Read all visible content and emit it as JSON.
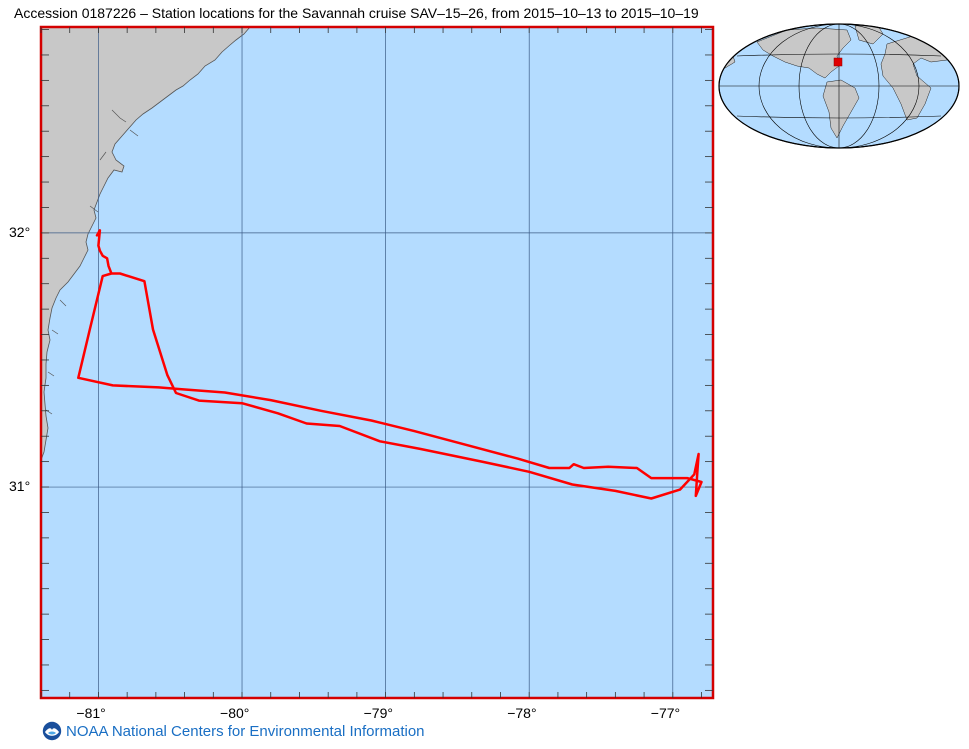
{
  "title": "Accession 0187226 – Station locations for the Savannah cruise SAV–15–26, from 2015–10–13 to 2015–10–19",
  "footer": "NOAA National Centers for Environmental Information",
  "colors": {
    "ocean": "#b4dcff",
    "land": "#c8c8c8",
    "frame": "#d40000",
    "track": "#ff0000",
    "grid": "#3b5b86",
    "footer_text": "#1a6fc4"
  },
  "map": {
    "lon_range": [
      -81.4,
      -76.72
    ],
    "lat_range": [
      30.17,
      32.81
    ],
    "lat_ticks": [
      {
        "value": 32,
        "label": "32°"
      },
      {
        "value": 31,
        "label": "31°"
      }
    ],
    "lon_ticks": [
      {
        "value": -81,
        "label": "−81°"
      },
      {
        "value": -80,
        "label": "−80°"
      },
      {
        "value": -79,
        "label": "−79°"
      },
      {
        "value": -78,
        "label": "−78°"
      },
      {
        "value": -77,
        "label": "−77°"
      }
    ]
  },
  "track": [
    [
      -81.01,
      31.99
    ],
    [
      -80.99,
      32.01
    ],
    [
      -81.0,
      31.95
    ],
    [
      -80.99,
      31.93
    ],
    [
      -80.97,
      31.91
    ],
    [
      -80.94,
      31.9
    ],
    [
      -80.93,
      31.87
    ],
    [
      -80.91,
      31.84
    ],
    [
      -80.85,
      31.84
    ],
    [
      -80.68,
      31.81
    ],
    [
      -80.62,
      31.62
    ],
    [
      -80.52,
      31.44
    ],
    [
      -80.46,
      31.37
    ],
    [
      -80.3,
      31.34
    ],
    [
      -80.0,
      31.33
    ],
    [
      -79.75,
      31.29
    ],
    [
      -79.55,
      31.25
    ],
    [
      -79.32,
      31.24
    ],
    [
      -79.04,
      31.18
    ],
    [
      -78.76,
      31.15
    ],
    [
      -78.33,
      31.1
    ],
    [
      -78.0,
      31.06
    ],
    [
      -77.7,
      31.01
    ],
    [
      -77.4,
      30.985
    ],
    [
      -77.15,
      30.955
    ],
    [
      -76.95,
      30.99
    ],
    [
      -76.85,
      31.05
    ],
    [
      -76.82,
      31.13
    ],
    [
      -76.83,
      31.05
    ],
    [
      -76.84,
      30.965
    ],
    [
      -76.8,
      31.02
    ],
    [
      -76.9,
      31.035
    ],
    [
      -77.15,
      31.035
    ],
    [
      -77.25,
      31.075
    ],
    [
      -77.45,
      31.08
    ],
    [
      -77.62,
      31.075
    ],
    [
      -77.69,
      31.09
    ],
    [
      -77.72,
      31.075
    ],
    [
      -77.86,
      31.075
    ],
    [
      -78.08,
      31.112
    ],
    [
      -78.48,
      31.172
    ],
    [
      -78.8,
      31.22
    ],
    [
      -79.1,
      31.262
    ],
    [
      -79.45,
      31.3
    ],
    [
      -79.8,
      31.342
    ],
    [
      -80.12,
      31.372
    ],
    [
      -80.42,
      31.385
    ],
    [
      -80.58,
      31.392
    ],
    [
      -80.9,
      31.4
    ],
    [
      -81.14,
      31.43
    ],
    [
      -81.06,
      31.62
    ],
    [
      -80.97,
      31.83
    ],
    [
      -80.91,
      31.84
    ]
  ]
}
